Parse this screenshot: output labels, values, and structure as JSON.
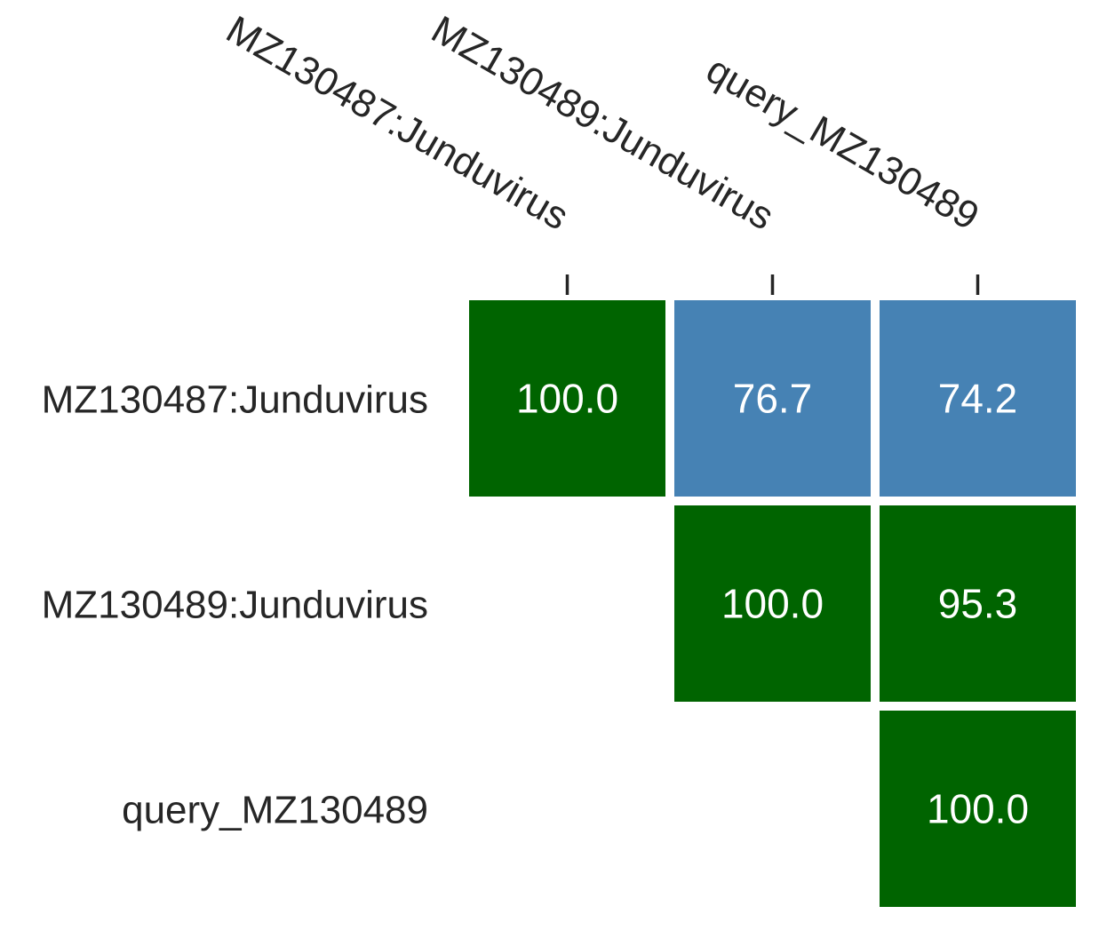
{
  "chart_data": {
    "type": "heatmap",
    "rows": [
      "MZ130487:Junduvirus",
      "MZ130489:Junduvirus",
      "query_MZ130489"
    ],
    "columns": [
      "MZ130487:Junduvirus",
      "MZ130489:Junduvirus",
      "query_MZ130489"
    ],
    "values": [
      [
        100.0,
        76.7,
        74.2
      ],
      [
        null,
        100.0,
        95.3
      ],
      [
        null,
        null,
        100.0
      ]
    ],
    "value_labels": [
      [
        "100.0",
        "76.7",
        "74.2"
      ],
      [
        "",
        "100.0",
        "95.3"
      ],
      [
        "",
        "",
        "100.0"
      ]
    ],
    "display": "upper-triangle",
    "column_labels_position": "top",
    "color_threshold": 95,
    "colors": {
      "high": "#006400",
      "low": "#4682b4",
      "text": "#ffffff",
      "label": "#262626",
      "background": "#ffffff"
    },
    "grid": false,
    "legend": "none"
  }
}
